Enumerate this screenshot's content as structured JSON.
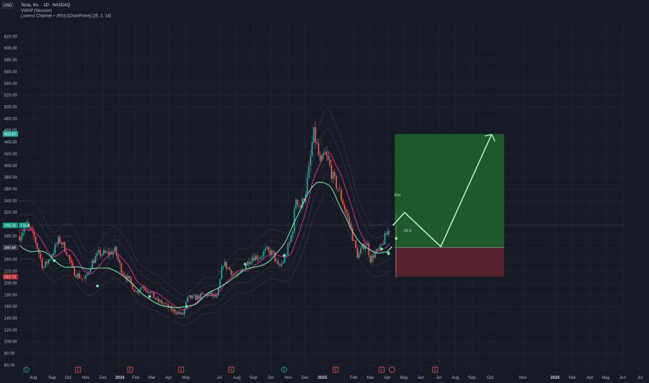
{
  "header": {
    "currency_button": "USD",
    "symbol_title": "Tesla, Inc. · 1D · NASDAQ",
    "indicator_1": "VWAP (Session)",
    "indicator_2": "Lowess Channel + (RSI) [ChartPrime] (25, 2, 14)"
  },
  "price_axis": {
    "ticks": [
      60,
      80,
      100,
      120,
      140,
      160,
      180,
      200,
      220,
      240,
      260,
      280,
      300,
      320,
      340,
      360,
      380,
      400,
      420,
      440,
      460,
      480,
      500,
      520,
      540,
      560,
      580,
      600,
      620
    ],
    "tags": [
      {
        "label": "453.87",
        "value": 453.87,
        "color": "#26a69a"
      },
      {
        "label": "298.26",
        "value": 298.26,
        "color": "#089981"
      },
      {
        "label": "260.49",
        "value": 260.49,
        "color": "#363a45"
      },
      {
        "label": "210.73",
        "value": 210.73,
        "color": "#b22833"
      }
    ]
  },
  "last_price_badge": {
    "label": "TSLA",
    "value": 298.26
  },
  "time_axis": {
    "labels": [
      {
        "t": "Aug",
        "bold": false
      },
      {
        "t": "Sep",
        "bold": false
      },
      {
        "t": "Oct",
        "bold": false
      },
      {
        "t": "Nov",
        "bold": false
      },
      {
        "t": "Dec",
        "bold": false
      },
      {
        "t": "2024",
        "bold": true
      },
      {
        "t": "Feb",
        "bold": false
      },
      {
        "t": "Mar",
        "bold": false
      },
      {
        "t": "Apr",
        "bold": false
      },
      {
        "t": "May",
        "bold": false
      },
      {
        "t": "Jul",
        "bold": false
      },
      {
        "t": "Aug",
        "bold": false
      },
      {
        "t": "Sep",
        "bold": false
      },
      {
        "t": "Oct",
        "bold": false
      },
      {
        "t": "Nov",
        "bold": false
      },
      {
        "t": "Dec",
        "bold": false
      },
      {
        "t": "2025",
        "bold": true
      },
      {
        "t": "Feb",
        "bold": false
      },
      {
        "t": "Mar",
        "bold": false
      },
      {
        "t": "Apr",
        "bold": false
      },
      {
        "t": "May",
        "bold": false
      },
      {
        "t": "Jun",
        "bold": false
      },
      {
        "t": "Jul",
        "bold": false
      },
      {
        "t": "Aug",
        "bold": false
      },
      {
        "t": "Sep",
        "bold": false
      },
      {
        "t": "Oct",
        "bold": false
      },
      {
        "t": "Nov",
        "bold": false
      },
      {
        "t": "2026",
        "bold": true
      },
      {
        "t": "Mar",
        "bold": false
      },
      {
        "t": "Apr",
        "bold": false
      },
      {
        "t": "May",
        "bold": false
      },
      {
        "t": "Jun",
        "bold": false
      },
      {
        "t": "Jul",
        "bold": false
      },
      {
        "t": "Aug",
        "bold": false
      }
    ]
  },
  "events": [
    {
      "type": "dividend",
      "label": "E"
    },
    {
      "type": "earnings",
      "label": "E"
    },
    {
      "type": "earnings",
      "label": "E"
    },
    {
      "type": "earnings",
      "label": "E"
    },
    {
      "type": "earnings",
      "label": "E"
    },
    {
      "type": "dividend",
      "label": "E"
    },
    {
      "type": "earnings",
      "label": "E"
    },
    {
      "type": "earnings",
      "label": "E"
    },
    {
      "type": "earnings",
      "label": "E"
    }
  ],
  "position_tool": {
    "entry": 260.49,
    "target": 453.87,
    "stop": 210.73,
    "profit_color": "#1f5f2c",
    "loss_color": "#5b2530"
  },
  "rsi_label": "RSI",
  "rsi_value": "60.9",
  "colors": {
    "background": "#161a25",
    "grid": "#232733",
    "up": "#26a69a",
    "down": "#ef5350",
    "lowess": "#ce2f8c",
    "vwap": "#7de3ad",
    "channel": "#6b7a72",
    "projection": "#b9f0c4"
  },
  "chart_data": {
    "type": "candlestick",
    "title": "Tesla, Inc. · 1D · NASDAQ",
    "ylim": [
      60,
      620
    ],
    "projection_path": [
      {
        "date": "2025-05",
        "price": 298
      },
      {
        "date": "2025-06",
        "price": 320
      },
      {
        "date": "2025-08",
        "price": 262
      },
      {
        "date": "2025-11",
        "price": 453
      }
    ],
    "approx_monthly_close": [
      {
        "month": "2023-07",
        "close": 270
      },
      {
        "month": "2023-08",
        "close": 250
      },
      {
        "month": "2023-09",
        "close": 255
      },
      {
        "month": "2023-10",
        "close": 220
      },
      {
        "month": "2023-11",
        "close": 240
      },
      {
        "month": "2023-12",
        "close": 250
      },
      {
        "month": "2024-01",
        "close": 190
      },
      {
        "month": "2024-02",
        "close": 200
      },
      {
        "month": "2024-03",
        "close": 175
      },
      {
        "month": "2024-04",
        "close": 170
      },
      {
        "month": "2024-05",
        "close": 175
      },
      {
        "month": "2024-06",
        "close": 185
      },
      {
        "month": "2024-07",
        "close": 230
      },
      {
        "month": "2024-08",
        "close": 215
      },
      {
        "month": "2024-09",
        "close": 255
      },
      {
        "month": "2024-10",
        "close": 250
      },
      {
        "month": "2024-11",
        "close": 345
      },
      {
        "month": "2024-12",
        "close": 405
      },
      {
        "month": "2025-01",
        "close": 400
      },
      {
        "month": "2025-02",
        "close": 290
      },
      {
        "month": "2025-03",
        "close": 260
      },
      {
        "month": "2025-04",
        "close": 280
      },
      {
        "month": "2025-05",
        "close": 298
      }
    ]
  }
}
